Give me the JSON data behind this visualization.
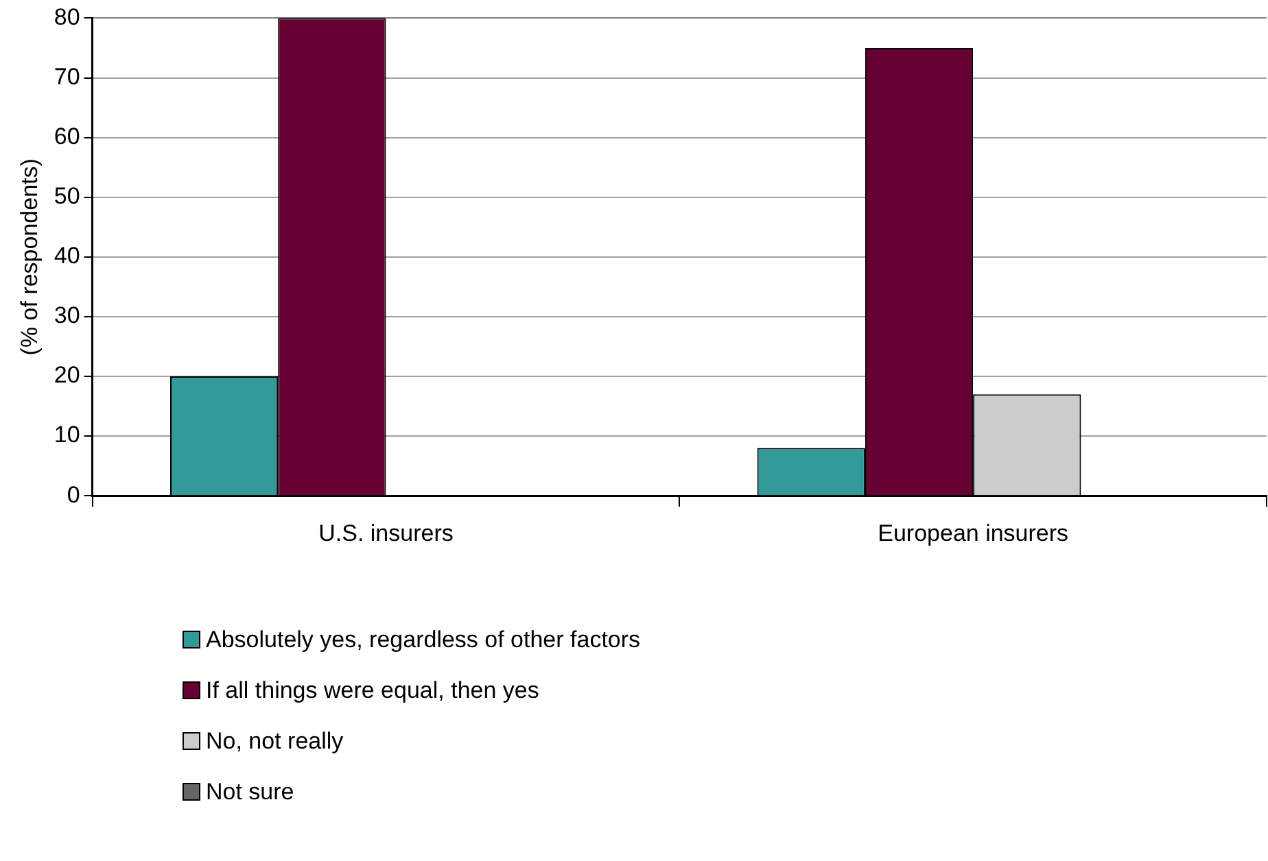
{
  "chart_data": {
    "type": "bar",
    "ylabel": "(% of respondents)",
    "categories": [
      "U.S. insurers",
      "European insurers"
    ],
    "series": [
      {
        "name": "Absolutely yes, regardless of other factors",
        "color": "#339999",
        "values": [
          20,
          8
        ]
      },
      {
        "name": "If all things were equal, then yes",
        "color": "#660033",
        "values": [
          80,
          75
        ]
      },
      {
        "name": "No, not really",
        "color": "#cccccc",
        "values": [
          0,
          17
        ]
      },
      {
        "name": "Not sure",
        "color": "#666666",
        "values": [
          0,
          0
        ]
      }
    ],
    "ylim": [
      0,
      80
    ],
    "yticks": [
      0,
      10,
      20,
      30,
      40,
      50,
      60,
      70,
      80
    ],
    "grid": "y",
    "legend": "bottom"
  }
}
